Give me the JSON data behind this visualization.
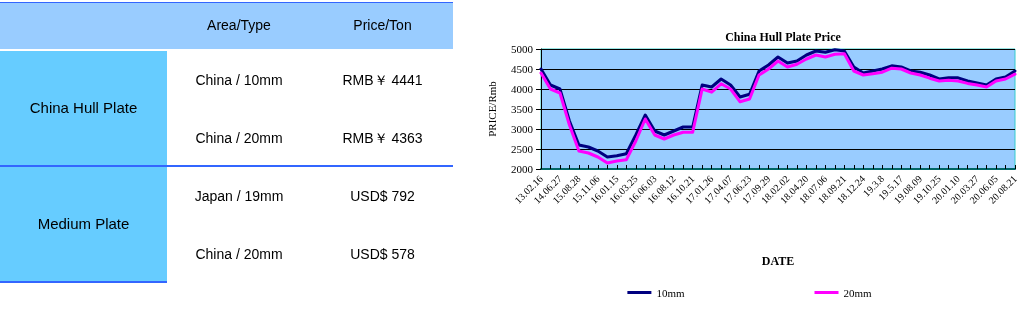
{
  "chart_data": [
    {
      "type": "other",
      "categories": [
        null,
        "Area/Type",
        "Price/Ton"
      ],
      "y_categories": [
        "China Hull Plate",
        "Medium Plate"
      ],
      "annotations": [
        "China / 10mm",
        "RMB￥ 4441",
        "China / 20mm",
        "RMB￥ 4363",
        "Japan / 19mm",
        "USD$ 792",
        "China / 20mm",
        "USD$ 578"
      ]
    },
    {
      "type": "line",
      "title": "China Hull Plate Price",
      "xlabel": "DATE",
      "ylabel": "PRICE/Rmb",
      "categories": [
        "13.02.16",
        null,
        "14.06.27",
        null,
        "15.08.28",
        null,
        "15.11.06",
        null,
        "16.01.15",
        null,
        "16.03.25",
        null,
        "16.06.03",
        null,
        "16.08.12",
        null,
        "16.10.21",
        null,
        "17.01.26",
        null,
        "17.04.07",
        null,
        "17.06.23",
        null,
        "17.09.29",
        null,
        "18.02.02",
        null,
        "18.04.20",
        null,
        "18.07.06",
        null,
        "18.09.21",
        null,
        "18.12.24",
        null,
        "19.3.8",
        null,
        "19.5.17",
        null,
        "19.08.09",
        null,
        "19.10.25",
        null,
        "20.01.10",
        null,
        "20.03.27",
        null,
        "20.06.05",
        null,
        "20.08.21"
      ],
      "series": [
        {
          "name": "10mm",
          "color": "#000080",
          "values": [
            4500,
            4100,
            4000,
            3200,
            2600,
            2550,
            2450,
            2300,
            2330,
            2380,
            2850,
            3350,
            2950,
            2850,
            2950,
            3050,
            3050,
            4100,
            4050,
            4250,
            4100,
            3800,
            3870,
            4450,
            4600,
            4800,
            4650,
            4700,
            4850,
            4950,
            4920,
            4980,
            4950,
            4550,
            4400,
            4450,
            4500,
            4580,
            4550,
            4450,
            4420,
            4350,
            4250,
            4280,
            4280,
            4200,
            4150,
            4100,
            4250,
            4300,
            4450
          ]
        },
        {
          "name": "20mm",
          "color": "#ff00ff",
          "values": [
            4400,
            4000,
            3900,
            3100,
            2450,
            2400,
            2300,
            2150,
            2200,
            2230,
            2700,
            3250,
            2850,
            2750,
            2850,
            2920,
            2920,
            4000,
            3920,
            4130,
            4000,
            3680,
            3750,
            4350,
            4500,
            4700,
            4550,
            4620,
            4750,
            4850,
            4800,
            4870,
            4880,
            4450,
            4350,
            4380,
            4420,
            4520,
            4500,
            4400,
            4350,
            4270,
            4200,
            4220,
            4200,
            4140,
            4100,
            4050,
            4200,
            4250,
            4370
          ]
        }
      ],
      "ylim": [
        2000,
        5000
      ],
      "yticks": [
        2000,
        2500,
        3000,
        3500,
        4000,
        4500,
        5000
      ],
      "grid": "y",
      "legend": "bottom",
      "marker": "none",
      "line_style": "solid"
    }
  ]
}
